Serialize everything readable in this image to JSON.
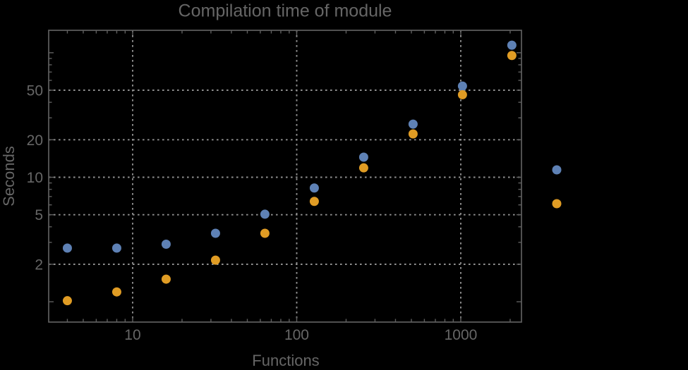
{
  "chart_data": {
    "type": "scatter",
    "title": "Compilation time of module",
    "xlabel": "Functions",
    "ylabel": "Seconds",
    "x_scale": "log",
    "y_scale": "log",
    "xlim": [
      3.078,
      2344
    ],
    "ylim": [
      0.687,
      151.4
    ],
    "x": [
      4,
      8,
      16,
      32,
      64,
      128,
      256,
      512,
      1024,
      2048
    ],
    "series": [
      {
        "name": "series-1",
        "color": "#5e81b5",
        "values": [
          2.7,
          2.7,
          2.9,
          3.55,
          5.05,
          8.2,
          14.5,
          26.7,
          54,
          115
        ]
      },
      {
        "name": "series-2",
        "color": "#e09c24",
        "values": [
          1.02,
          1.2,
          1.52,
          2.16,
          3.55,
          6.4,
          11.9,
          22.3,
          46,
          95
        ]
      }
    ],
    "marker": {
      "shape": "circle",
      "diameter": 13
    },
    "grid": {
      "x_values": [
        10,
        100,
        1000
      ],
      "y_values": [
        2,
        5,
        10,
        20,
        50
      ],
      "color": "#8f8f8f",
      "style": "dotted"
    },
    "x_tick_labels": [
      {
        "v": 10,
        "label": "10"
      },
      {
        "v": 100,
        "label": "100"
      },
      {
        "v": 1000,
        "label": "1000"
      }
    ],
    "y_tick_labels": [
      {
        "v": 2,
        "label": "2"
      },
      {
        "v": 5,
        "label": "5"
      },
      {
        "v": 10,
        "label": "10"
      },
      {
        "v": 20,
        "label": "20"
      },
      {
        "v": 50,
        "label": "50"
      }
    ],
    "x_ticks_major_unlabeled": [],
    "x_ticks_minor": [
      4,
      5,
      6,
      7,
      8,
      9,
      20,
      30,
      40,
      50,
      60,
      70,
      80,
      90,
      200,
      300,
      400,
      500,
      600,
      700,
      800,
      900,
      2000
    ],
    "y_ticks_major_unlabeled": [
      1,
      100
    ],
    "y_ticks_minor": [
      3,
      4,
      6,
      7,
      8,
      9,
      30,
      40,
      60,
      70,
      80,
      90
    ],
    "legend": {
      "position": "right-center",
      "entries": [
        {
          "marker_color": "#5e81b5"
        },
        {
          "marker_color": "#e09c24"
        }
      ]
    },
    "colors": {
      "background": "#000000",
      "frame": "#5f5f5f",
      "text": "#666666"
    },
    "legend_text_visible": false
  }
}
